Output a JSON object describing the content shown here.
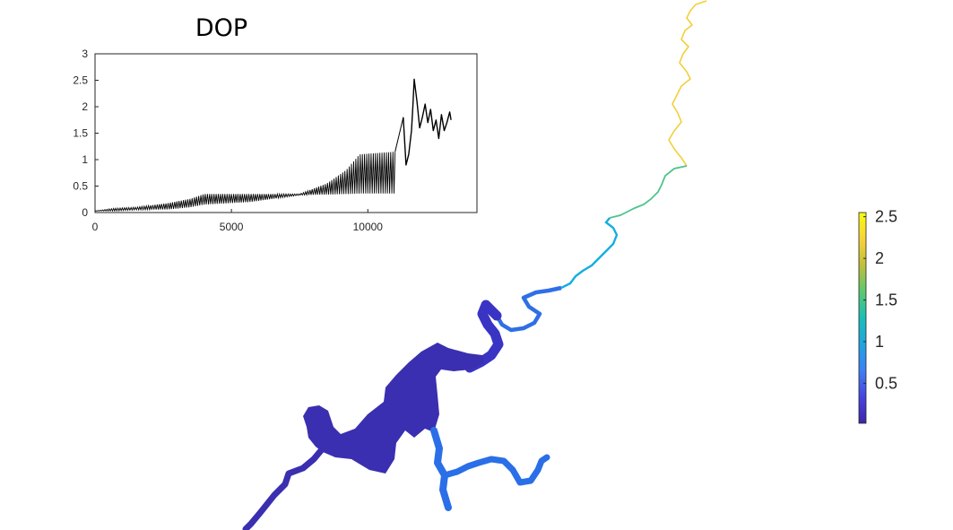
{
  "colors": {
    "line": "#000000",
    "axis": "#262626",
    "colormap": [
      "#3e26a8",
      "#4743e0",
      "#3f7ff3",
      "#1fa4df",
      "#1abfb8",
      "#5cc86f",
      "#c1bf3c",
      "#f7d33a",
      "#f9fb0e"
    ]
  },
  "chart_data": [
    {
      "type": "line",
      "title": "DOP",
      "xlabel": "",
      "ylabel": "",
      "xlim": [
        0,
        14000
      ],
      "ylim": [
        0,
        3
      ],
      "xticks": [
        "0",
        "5000",
        "10000"
      ],
      "xtick_values": [
        0,
        5000,
        10000
      ],
      "yticks": [
        "0",
        "0.5",
        "1",
        "1.5",
        "2",
        "2.5",
        "3"
      ],
      "ytick_values": [
        0,
        0.5,
        1,
        1.5,
        2,
        2.5,
        3
      ],
      "grid": false,
      "series": [
        {
          "oscillating_band": [
            {
              "x": 0,
              "low": 0.03,
              "high": 0.03
            },
            {
              "x": 700,
              "low": 0.03,
              "high": 0.08
            },
            {
              "x": 1500,
              "low": 0.05,
              "high": 0.1
            },
            {
              "x": 2700,
              "low": 0.06,
              "high": 0.18
            },
            {
              "x": 3500,
              "low": 0.1,
              "high": 0.26
            },
            {
              "x": 4000,
              "low": 0.15,
              "high": 0.35
            },
            {
              "x": 5700,
              "low": 0.2,
              "high": 0.35
            },
            {
              "x": 7500,
              "low": 0.33,
              "high": 0.35
            },
            {
              "x": 8500,
              "low": 0.34,
              "high": 0.55
            },
            {
              "x": 9200,
              "low": 0.35,
              "high": 0.8
            },
            {
              "x": 9700,
              "low": 0.36,
              "high": 1.1
            },
            {
              "x": 11000,
              "low": 0.36,
              "high": 1.15
            }
          ],
          "x": [
            11300,
            11400,
            11500,
            11600,
            11650,
            11700,
            11800,
            11900,
            12000,
            12100,
            12200,
            12300,
            12400,
            12500,
            12600,
            12700,
            12800,
            12900,
            13000,
            13050
          ],
          "values": [
            1.8,
            0.9,
            1.1,
            1.55,
            2.0,
            2.52,
            2.1,
            1.6,
            1.8,
            2.05,
            1.7,
            1.95,
            1.55,
            1.75,
            1.4,
            1.85,
            1.55,
            1.7,
            1.9,
            1.75
          ]
        }
      ]
    },
    {
      "type": "heatmap",
      "colorbar": {
        "ticks": [
          "0.5",
          "1",
          "1.5",
          "2",
          "2.5"
        ],
        "tick_values": [
          0.5,
          1,
          1.5,
          2,
          2.5
        ],
        "range": [
          0.02,
          2.55
        ]
      }
    }
  ]
}
